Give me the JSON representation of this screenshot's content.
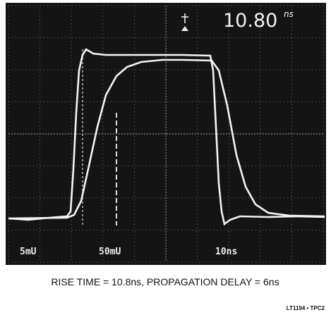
{
  "readout": {
    "value": "10.80",
    "unit": "ns"
  },
  "labels": {
    "channel_1": "5mU",
    "channel_2": "50mU",
    "timebase": "10ns"
  },
  "caption": "RISE TIME = 10.8ns, PROPAGATION DELAY = 6ns",
  "figure_id": "LT1194 • TPC2"
}
